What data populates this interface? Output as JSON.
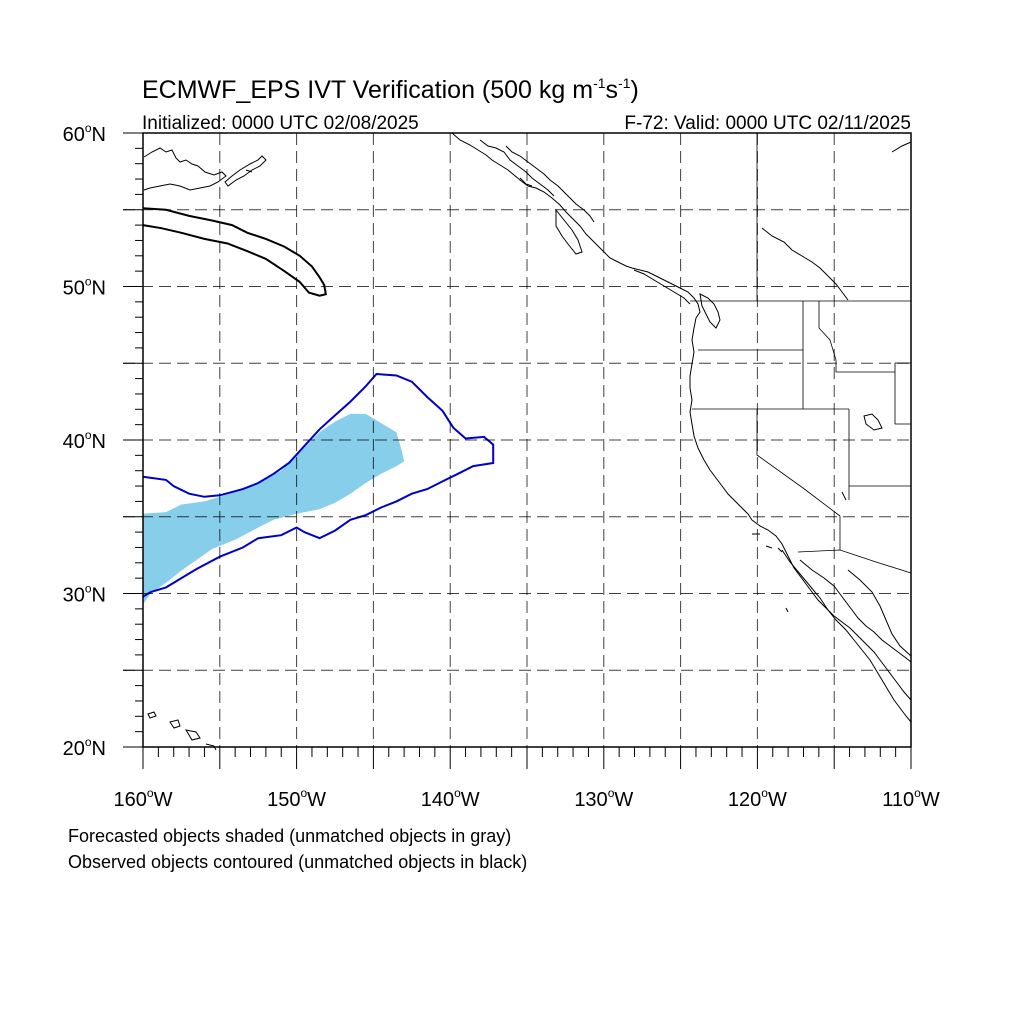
{
  "title_main": "ECMWF_EPS IVT Verification (500 kg m",
  "title_sup1": "-1",
  "title_mid": "s",
  "title_sup2": "-1",
  "title_end": ")",
  "subtitle_left": "Initialized: 0000 UTC 02/08/2025",
  "subtitle_right": "F-72: Valid: 0000 UTC 02/11/2025",
  "lat_labels": [
    {
      "text": "60",
      "lat": 60
    },
    {
      "text": "50",
      "lat": 50
    },
    {
      "text": "40",
      "lat": 40
    },
    {
      "text": "30",
      "lat": 30
    },
    {
      "text": "20",
      "lat": 20
    }
  ],
  "lon_labels": [
    {
      "text": "160",
      "lon": -160
    },
    {
      "text": "150",
      "lon": -150
    },
    {
      "text": "140",
      "lon": -140
    },
    {
      "text": "130",
      "lon": -130
    },
    {
      "text": "120",
      "lon": -120
    },
    {
      "text": "110",
      "lon": -110
    }
  ],
  "lat_hemisphere": "N",
  "lon_hemisphere": "W",
  "footer_line1": "Forecasted objects shaded (unmatched objects in gray)",
  "footer_line2": "Observed objects contoured (unmatched objects in black)",
  "colors": {
    "forecast_matched": "#87ceeb",
    "observed_matched": "#0000cc",
    "observed_unmatched": "#000000"
  },
  "extent": {
    "lon_min": -160,
    "lon_max": -110,
    "lat_min": 20,
    "lat_max": 60
  },
  "forecast_object_matched": [
    [
      -160,
      35.2
    ],
    [
      -158.5,
      35.3
    ],
    [
      -157.5,
      35.8
    ],
    [
      -156,
      36
    ],
    [
      -155,
      36.3
    ],
    [
      -153.5,
      36.8
    ],
    [
      -152,
      37.5
    ],
    [
      -151,
      38
    ],
    [
      -150.2,
      38.8
    ],
    [
      -149.5,
      39.5
    ],
    [
      -148.5,
      40.5
    ],
    [
      -147.5,
      41.2
    ],
    [
      -146.5,
      41.7
    ],
    [
      -145.5,
      41.7
    ],
    [
      -144.5,
      41.1
    ],
    [
      -143.5,
      40.5
    ],
    [
      -143.2,
      39.5
    ],
    [
      -143,
      38.6
    ],
    [
      -143.5,
      38.3
    ],
    [
      -144.5,
      37.8
    ],
    [
      -145.5,
      37.2
    ],
    [
      -146.5,
      36.5
    ],
    [
      -147.5,
      35.9
    ],
    [
      -148.5,
      35.5
    ],
    [
      -150,
      35.2
    ],
    [
      -151.5,
      34.8
    ],
    [
      -152.5,
      34.3
    ],
    [
      -154,
      33.5
    ],
    [
      -155.5,
      32.9
    ],
    [
      -156.5,
      32.2
    ],
    [
      -157.5,
      31.5
    ],
    [
      -158.5,
      30.7
    ],
    [
      -159.5,
      30
    ],
    [
      -160,
      29.3
    ]
  ],
  "observed_object_matched": [
    [
      -160,
      37.6
    ],
    [
      -158.5,
      37.4
    ],
    [
      -158,
      37
    ],
    [
      -157,
      36.5
    ],
    [
      -156,
      36.3
    ],
    [
      -155,
      36.4
    ],
    [
      -153.5,
      36.8
    ],
    [
      -152.5,
      37.2
    ],
    [
      -151.5,
      37.8
    ],
    [
      -150.5,
      38.5
    ],
    [
      -149.5,
      39.6
    ],
    [
      -148.5,
      40.7
    ],
    [
      -147.5,
      41.6
    ],
    [
      -146.5,
      42.5
    ],
    [
      -145.5,
      43.5
    ],
    [
      -144.8,
      44.3
    ],
    [
      -143.5,
      44.2
    ],
    [
      -142.5,
      43.8
    ],
    [
      -141.5,
      42.8
    ],
    [
      -140.5,
      41.9
    ],
    [
      -139.8,
      40.8
    ],
    [
      -139,
      40.1
    ],
    [
      -137.8,
      40.2
    ],
    [
      -137.2,
      39.7
    ],
    [
      -137.2,
      38.5
    ],
    [
      -138.5,
      38.3
    ],
    [
      -139.5,
      37.8
    ],
    [
      -140.5,
      37.3
    ],
    [
      -141.5,
      36.8
    ],
    [
      -142.5,
      36.5
    ],
    [
      -143.5,
      36
    ],
    [
      -144.5,
      35.6
    ],
    [
      -145.5,
      35.1
    ],
    [
      -146.5,
      34.8
    ],
    [
      -147.5,
      34.1
    ],
    [
      -148.5,
      33.6
    ],
    [
      -149.5,
      34
    ],
    [
      -150,
      34.3
    ],
    [
      -151,
      33.8
    ],
    [
      -152.5,
      33.6
    ],
    [
      -153.5,
      33
    ],
    [
      -155,
      32.4
    ],
    [
      -156.5,
      31.6
    ],
    [
      -157.5,
      31
    ],
    [
      -158.5,
      30.4
    ],
    [
      -159.5,
      30.1
    ],
    [
      -160,
      29.8
    ]
  ],
  "observed_object_unmatched": [
    [
      [
        -160,
        55.1
      ],
      [
        -158.5,
        55
      ],
      [
        -157,
        54.6
      ],
      [
        -155.5,
        54.3
      ],
      [
        -154.2,
        54.0
      ],
      [
        -153.2,
        53.5
      ],
      [
        -152,
        53.1
      ],
      [
        -150.8,
        52.6
      ],
      [
        -149.8,
        52
      ],
      [
        -149,
        51.3
      ],
      [
        -148.5,
        50.6
      ],
      [
        -148.2,
        50.1
      ],
      [
        -148.1,
        49.5
      ],
      [
        -148.5,
        49.4
      ],
      [
        -149.2,
        49.6
      ],
      [
        -149.8,
        50.3
      ],
      [
        -150.8,
        51
      ],
      [
        -152,
        51.8
      ],
      [
        -153.2,
        52.3
      ],
      [
        -154.5,
        52.8
      ],
      [
        -156,
        53.1
      ],
      [
        -157.5,
        53.5
      ],
      [
        -158.8,
        53.8
      ],
      [
        -160,
        54
      ]
    ]
  ]
}
